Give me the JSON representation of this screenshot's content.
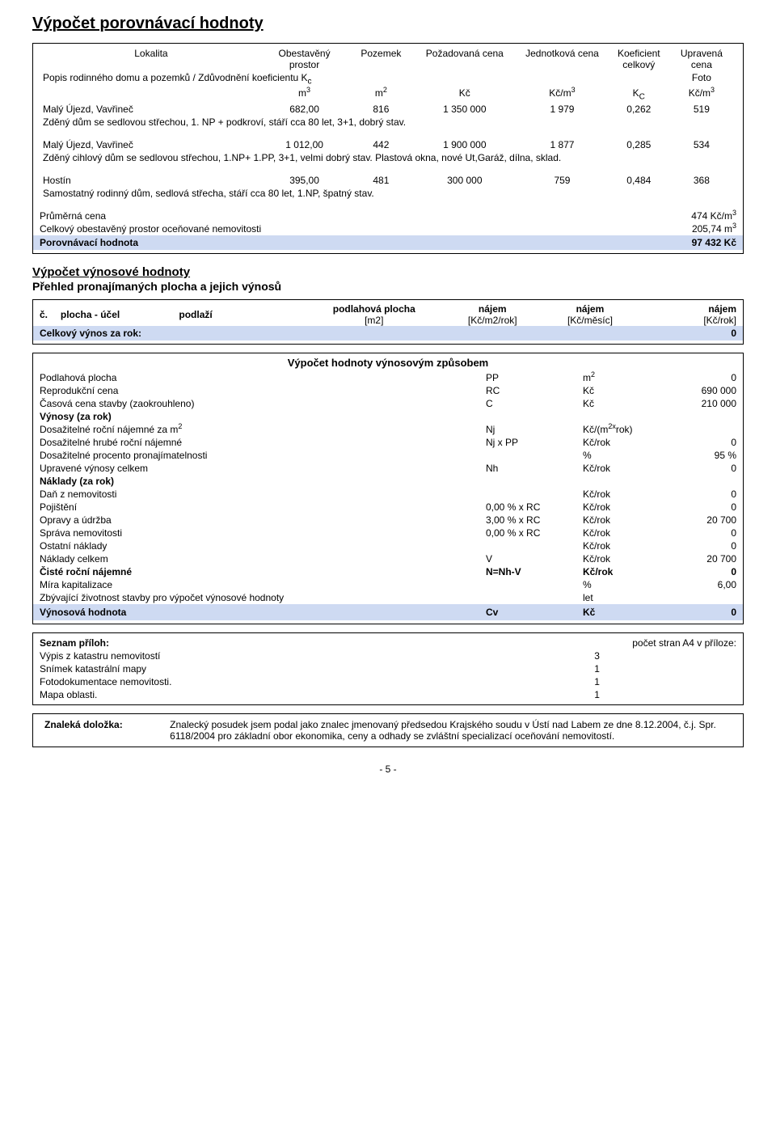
{
  "page": {
    "title": "Výpočet porovnávací hodnoty",
    "footer": "- 5 -"
  },
  "comp": {
    "headers": {
      "lokalita": "Lokalita",
      "obestaveny": "Obestavěný",
      "prostor": "prostor",
      "pozemek": "Pozemek",
      "pozadovana": "Požadovaná cena",
      "jednotkova": "Jednotková cena",
      "koeficient": "Koeficient",
      "celkovy": "celkový",
      "upravena": "Upravená cena",
      "popis": "Popis rodinného domu a pozemků / Zdůvodnění koeficientu K",
      "popis_sub": "c",
      "foto": "Foto",
      "m3": "m",
      "m2": "m",
      "kc": "Kč",
      "kcm3": "Kč/m",
      "Kc": "K",
      "Kc_sub": "C",
      "kcm3b": "Kč/m"
    },
    "rows": [
      {
        "lokalita": "Malý Újezd, Vavřineč",
        "obestaveny": "682,00",
        "pozemek": "816",
        "pozadovana": "1 350 000",
        "jednotkova": "1 979",
        "koef": "0,262",
        "upravena": "519",
        "desc": "Zděný dům se sedlovou střechou, 1. NP + podkroví, stáří cca 80 let, 3+1, dobrý stav."
      },
      {
        "lokalita": "Malý Újezd, Vavřineč",
        "obestaveny": "1 012,00",
        "pozemek": "442",
        "pozadovana": "1 900 000",
        "jednotkova": "1 877",
        "koef": "0,285",
        "upravena": "534",
        "desc": "Zděný cihlový dům se sedlovou střechou, 1.NP+ 1.PP,  3+1, velmi dobrý stav. Plastová okna, nové Ut,Garáž, dílna, sklad."
      },
      {
        "lokalita": "Hostín",
        "obestaveny": "395,00",
        "pozemek": "481",
        "pozadovana": "300 000",
        "jednotkova": "759",
        "koef": "0,484",
        "upravena": "368",
        "desc": "Samostatný rodinný  dům, sedlová střecha,  stáří cca 80 let, 1.NP, špatný stav."
      }
    ],
    "summary": {
      "prum_label": "Průměrná cena",
      "prum_val": "474 Kč/m",
      "oc_label": "Celkový obestavěný prostor oceňované nemovitosti",
      "oc_val": "205,74 m",
      "porov_label": "Porovnávací hodnota",
      "porov_val": "97 432 Kč"
    }
  },
  "vynos": {
    "title": "Výpočet výnosové hodnoty",
    "subtitle": "Přehled pronajímaných plocha a jejich výnosů",
    "hdr": {
      "c": "č.",
      "plocha": "plocha - účel",
      "podlazi": "podlaží",
      "podlahova": "podlahová plocha",
      "podlahova_u": "[m2]",
      "najem1": "nájem",
      "najem1_u": "[Kč/m2/rok]",
      "najem2": "nájem",
      "najem2_u": "[Kč/měsíc]",
      "najem3": "nájem",
      "najem3_u": "[Kč/rok]"
    },
    "total_label": "Celkový výnos za rok:",
    "total_val": "0"
  },
  "calc": {
    "title": "Výpočet hodnoty výnosovým způsobem",
    "rows": [
      {
        "l": "Podlahová plocha",
        "m": "PP",
        "u": "m2",
        "v": "0",
        "bold": false
      },
      {
        "l": "Reprodukční cena",
        "m": "RC",
        "u": "Kč",
        "v": "690 000",
        "bold": false
      },
      {
        "l": "Časová cena stavby (zaokrouhleno)",
        "m": "C",
        "u": "Kč",
        "v": "210 000",
        "bold": false
      },
      {
        "l": "Výnosy (za rok)",
        "m": "",
        "u": "",
        "v": "",
        "bold": true
      },
      {
        "l": "Dosažitelné roční nájemné za m2",
        "m": "Nj",
        "u": "Kč/(m2xrok)",
        "v": "",
        "bold": false
      },
      {
        "l": "Dosažitelné hrubé roční nájemné",
        "m": "Nj x PP",
        "u": "Kč/rok",
        "v": "0",
        "bold": false
      },
      {
        "l": "Dosažitelné procento pronajímatelnosti",
        "m": "",
        "u": "%",
        "v": "95 %",
        "bold": false
      },
      {
        "l": "Upravené výnosy celkem",
        "m": "Nh",
        "u": "Kč/rok",
        "v": "0",
        "bold": false
      },
      {
        "l": "Náklady (za rok)",
        "m": "",
        "u": "",
        "v": "",
        "bold": true
      },
      {
        "l": "Daň z nemovitosti",
        "m": "",
        "u": "Kč/rok",
        "v": "0",
        "bold": false
      },
      {
        "l": "Pojištění",
        "m": "0,00 % x RC",
        "u": "Kč/rok",
        "v": "0",
        "bold": false
      },
      {
        "l": "Opravy a údržba",
        "m": "3,00 % x RC",
        "u": "Kč/rok",
        "v": "20 700",
        "bold": false
      },
      {
        "l": "Správa nemovitosti",
        "m": "0,00 % x RC",
        "u": "Kč/rok",
        "v": "0",
        "bold": false
      },
      {
        "l": "Ostatní náklady",
        "m": "",
        "u": "Kč/rok",
        "v": "0",
        "bold": false
      },
      {
        "l": "Náklady celkem",
        "m": "V",
        "u": "Kč/rok",
        "v": "20 700",
        "bold": false
      },
      {
        "l": "Čisté roční nájemné",
        "m": "N=Nh-V",
        "u": "Kč/rok",
        "v": "0",
        "bold": true
      },
      {
        "l": "Míra kapitalizace",
        "m": "",
        "u": "%",
        "v": "6,00",
        "bold": false
      },
      {
        "l": "Zbývající životnost stavby pro výpočet výnosové hodnoty",
        "m": "",
        "u": "let",
        "v": "",
        "bold": false
      }
    ],
    "result_l": "Výnosová hodnota",
    "result_m": "Cv",
    "result_u": "Kč",
    "result_v": "0"
  },
  "attach": {
    "label": "Seznam příloh:",
    "count_label": "počet stran A4 v příloze:",
    "items": [
      {
        "name": "Výpis z katastru nemovitostí",
        "pages": "3"
      },
      {
        "name": "Snímek katastrální mapy",
        "pages": "1"
      },
      {
        "name": "Fotodokumentace nemovitosti.",
        "pages": "1"
      },
      {
        "name": "Mapa oblasti.",
        "pages": "1"
      }
    ]
  },
  "znal": {
    "label": "Znaleká doložka:",
    "text": "Znalecký posudek jsem podal jako znalec jmenovaný předsedou Krajského soudu v Ústí nad Labem ze dne 8.12.2004, č.j. Spr. 6118/2004 pro základní obor ekonomika, ceny a odhady se zvláštní specializací oceňování nemovitostí."
  },
  "colors": {
    "band": "#cedaf2",
    "border": "#000000"
  }
}
